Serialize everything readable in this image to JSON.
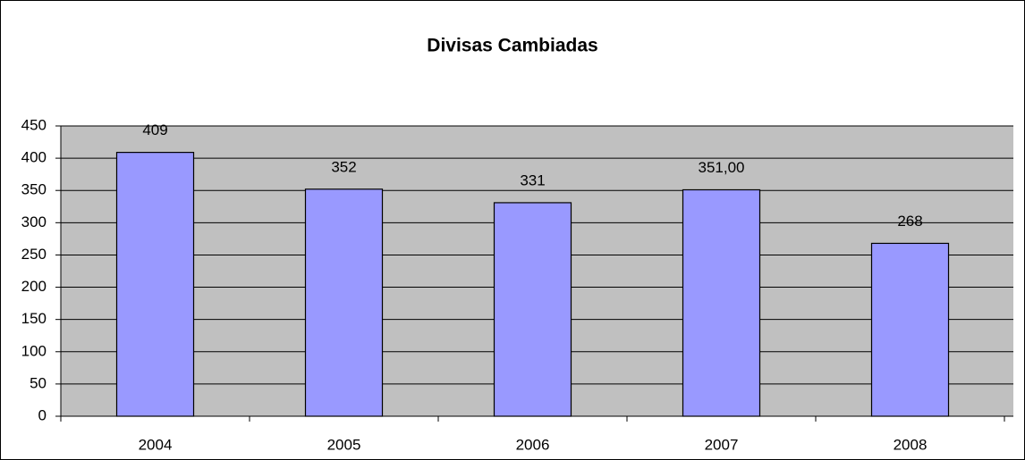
{
  "chart_data": {
    "type": "bar",
    "title": "Divisas Cambiadas",
    "categories": [
      "2004",
      "2005",
      "2006",
      "2007",
      "2008"
    ],
    "values": [
      409,
      352,
      331,
      351,
      268
    ],
    "value_labels": [
      "409",
      "352",
      "331",
      "351,00",
      "268"
    ],
    "color": "#9999ff",
    "ylim": [
      0,
      450
    ],
    "yticks": [
      0,
      50,
      100,
      150,
      200,
      250,
      300,
      350,
      400,
      450
    ],
    "grid": true
  }
}
